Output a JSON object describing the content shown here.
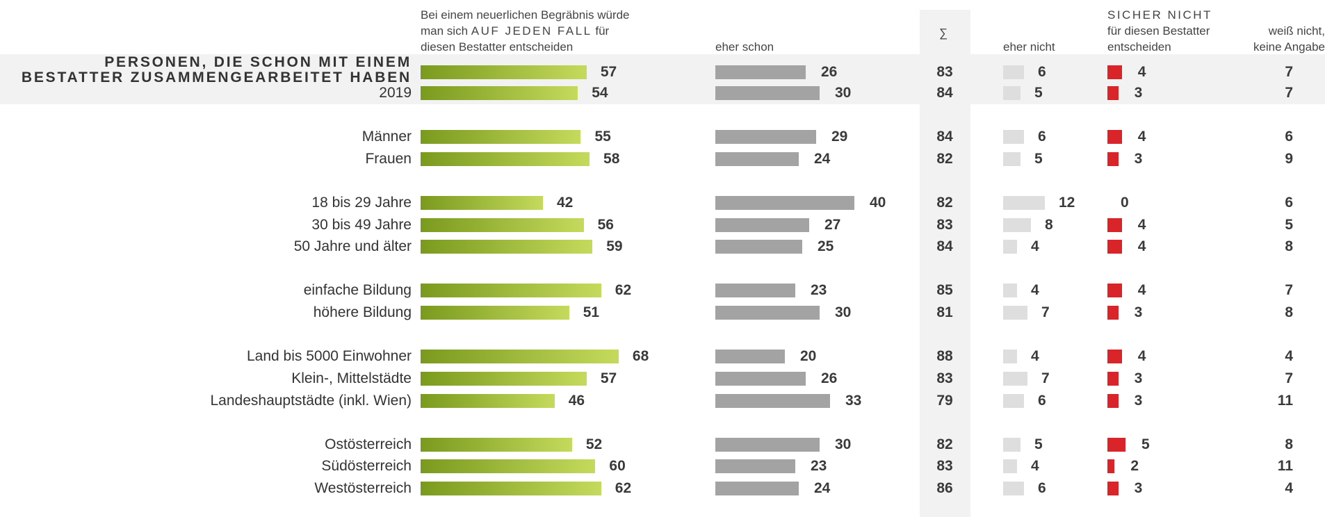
{
  "headers": {
    "col1_line1": "Bei einem neuerlichen Begräbnis würde",
    "col1_line2_pre": "man sich ",
    "col1_line2_caps": "AUF JEDEN FALL",
    "col1_line2_post": " für",
    "col1_line3": "diesen Bestatter entscheiden",
    "col2": "eher schon",
    "sum": "∑",
    "col3": "eher nicht",
    "col4_line1": "SICHER NICHT",
    "col4_line2": "für diesen Bestatter",
    "col4_line3": "entscheiden",
    "col5_line1": "weiß nicht,",
    "col5_line2": "keine Angabe"
  },
  "group_title_line1": "PERSONEN, DIE SCHON MIT EINEM",
  "group_title_line2": "BESTATTER ZUSAMMENGEARBEITET HABEN",
  "colors": {
    "green_dark": "#7a9a1e",
    "green_light": "#c4da5c",
    "grey_bar": "#a3a3a3",
    "light_grey_bar": "#dedede",
    "red_bar": "#d9252a",
    "highlight_bg": "#f2f2f2"
  },
  "chart_data": {
    "type": "bar",
    "orientation": "horizontal",
    "stacked_columns": true,
    "columns": [
      "auf jeden Fall",
      "eher schon",
      "∑",
      "eher nicht",
      "sicher nicht",
      "weiß nicht, keine Angabe"
    ],
    "rows": [
      {
        "label": "",
        "values": [
          57,
          26,
          83,
          6,
          4,
          7
        ]
      },
      {
        "label": "2019",
        "values": [
          54,
          30,
          84,
          5,
          3,
          7
        ]
      },
      {
        "label": "Männer",
        "values": [
          55,
          29,
          84,
          6,
          4,
          6
        ]
      },
      {
        "label": "Frauen",
        "values": [
          58,
          24,
          82,
          5,
          3,
          9
        ]
      },
      {
        "label": "18 bis 29 Jahre",
        "values": [
          42,
          40,
          82,
          12,
          0,
          6
        ]
      },
      {
        "label": "30 bis 49 Jahre",
        "values": [
          56,
          27,
          83,
          8,
          4,
          5
        ]
      },
      {
        "label": "50 Jahre und älter",
        "values": [
          59,
          25,
          84,
          4,
          4,
          8
        ]
      },
      {
        "label": "einfache Bildung",
        "values": [
          62,
          23,
          85,
          4,
          4,
          7
        ]
      },
      {
        "label": "höhere Bildung",
        "values": [
          51,
          30,
          81,
          7,
          3,
          8
        ]
      },
      {
        "label": "Land bis 5000 Einwohner",
        "values": [
          68,
          20,
          88,
          4,
          4,
          4
        ]
      },
      {
        "label": "Klein-, Mittelstädte",
        "values": [
          57,
          26,
          83,
          7,
          3,
          7
        ]
      },
      {
        "label": "Landeshauptstädte (inkl. Wien)",
        "values": [
          46,
          33,
          79,
          6,
          3,
          11
        ]
      },
      {
        "label": "Ostösterreich",
        "values": [
          52,
          30,
          82,
          5,
          5,
          8
        ]
      },
      {
        "label": "Südösterreich",
        "values": [
          60,
          23,
          83,
          4,
          2,
          11
        ]
      },
      {
        "label": "Westösterreich",
        "values": [
          62,
          24,
          86,
          6,
          3,
          4
        ]
      }
    ]
  }
}
